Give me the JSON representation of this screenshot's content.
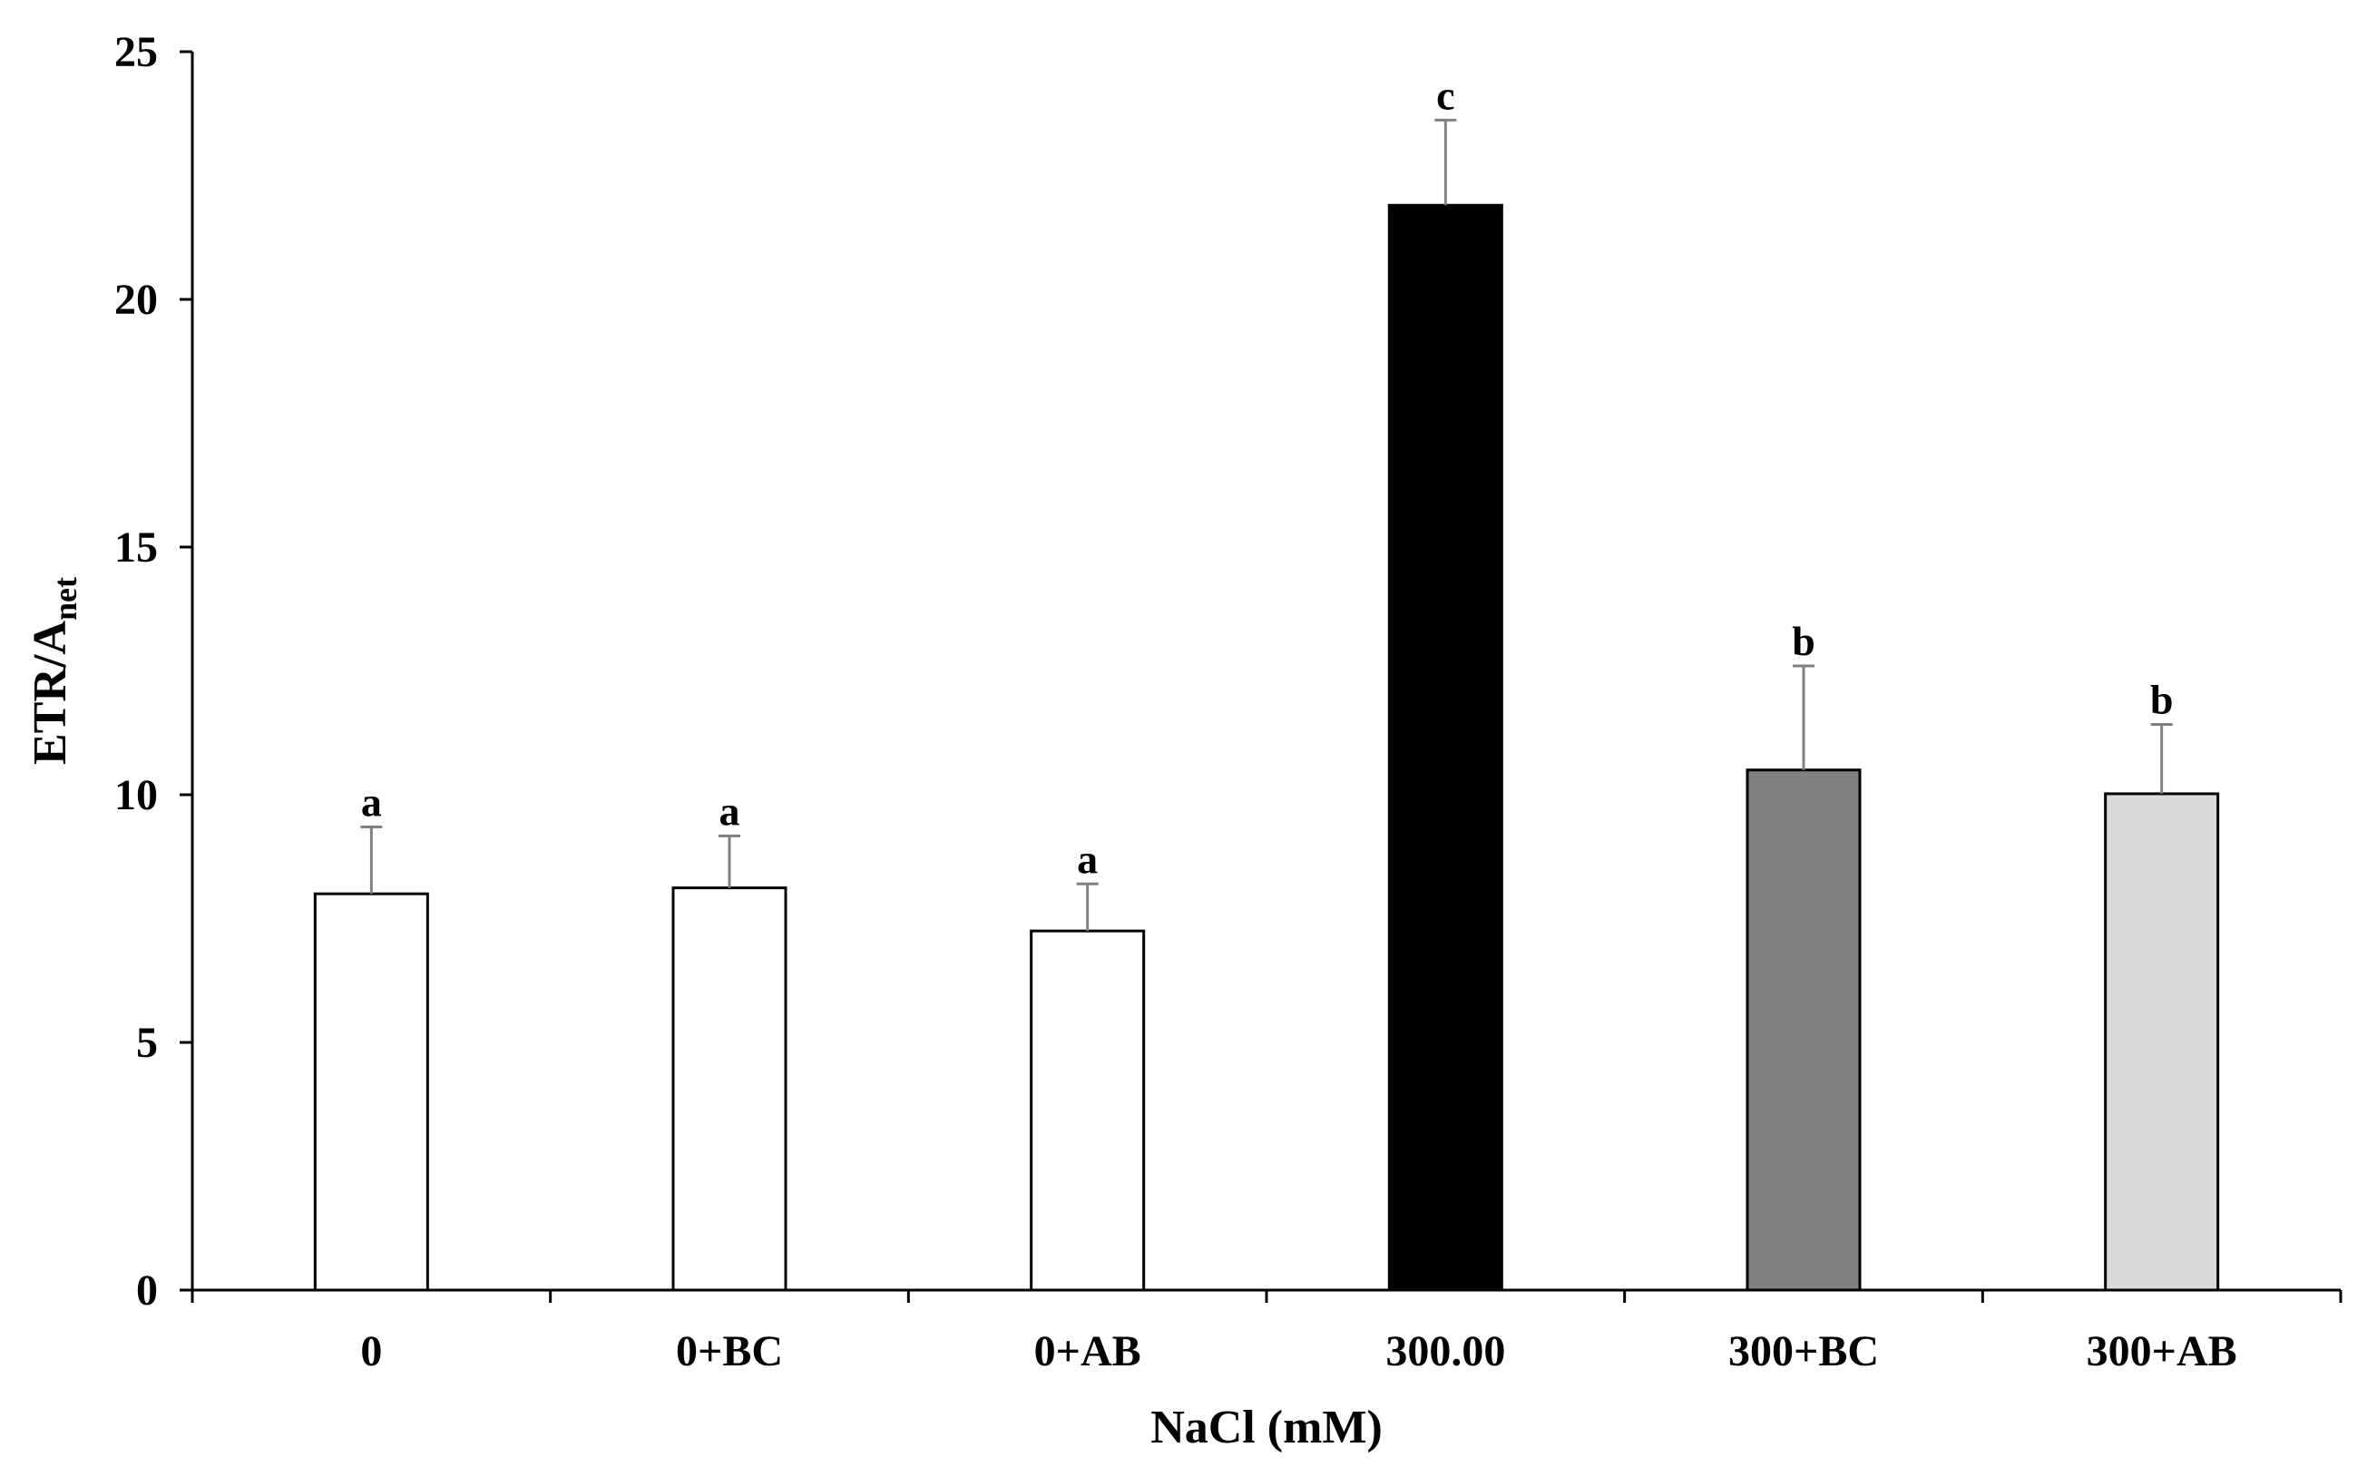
{
  "chart_data": {
    "type": "bar",
    "categories": [
      "0",
      "0+BC",
      "0+AB",
      "300.00",
      "300+BC",
      "300+AB"
    ],
    "values": [
      8.0,
      8.12,
      7.25,
      21.9,
      10.5,
      10.02
    ],
    "errors": [
      1.35,
      1.05,
      0.95,
      1.72,
      2.1,
      1.4
    ],
    "significance": [
      "a",
      "a",
      "a",
      "c",
      "b",
      "b"
    ],
    "bar_colors": [
      "#ffffff",
      "#ffffff",
      "#ffffff",
      "#000000",
      "#808080",
      "#d9d9d9"
    ],
    "xlabel": "NaCl (mM)",
    "ylabel_main": "ETR/A",
    "ylabel_sub": "net",
    "ylim": [
      0,
      25
    ],
    "yticks": [
      0,
      5,
      10,
      15,
      20,
      25
    ],
    "grid": false,
    "legend": false,
    "error_bar_color": "#808080"
  }
}
